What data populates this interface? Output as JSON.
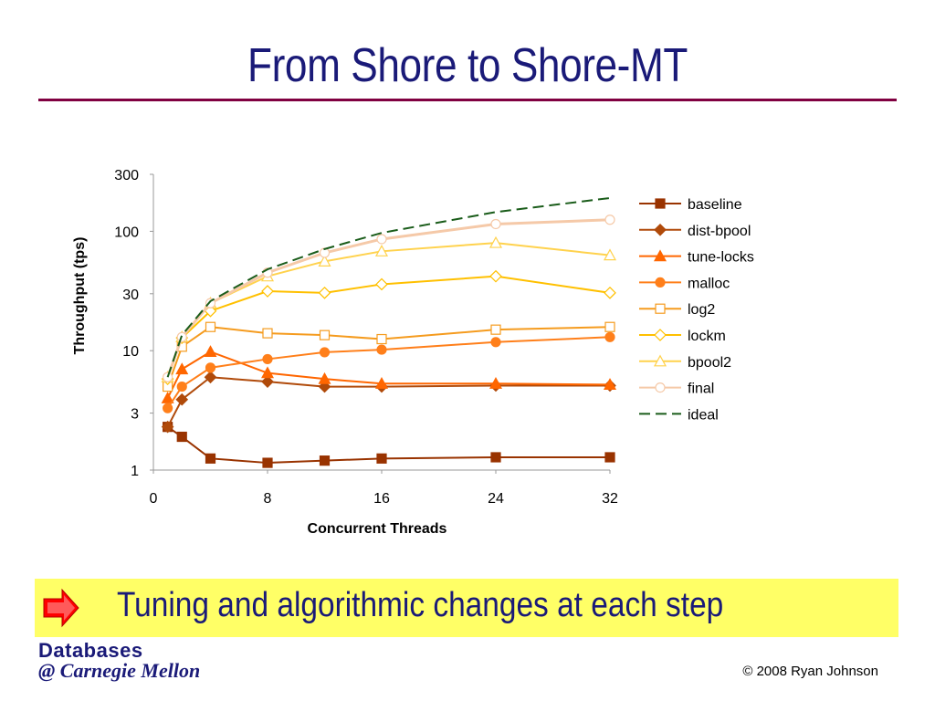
{
  "slide": {
    "title": "From Shore to Shore-MT",
    "callout_text": "Tuning and algorithmic changes at each step",
    "logo_line1": "Databases",
    "logo_line2": "@ Carnegie Mellon",
    "copyright": "© 2008 Ryan Johnson"
  },
  "colors": {
    "title": "#1a1a78",
    "rule": "#800040",
    "callout_bg": "#ffff66",
    "arrow": "#ff0000"
  },
  "chart_data": {
    "type": "line",
    "xlabel": "Concurrent Threads",
    "ylabel": "Throughput (tps)",
    "xlim": [
      0,
      32
    ],
    "ylim": [
      1,
      300
    ],
    "yscale": "log",
    "xticks": [
      0,
      8,
      16,
      24,
      32
    ],
    "yticks": [
      1,
      3,
      10,
      30,
      100,
      300
    ],
    "legend_position": "right",
    "grid": false,
    "series": [
      {
        "name": "baseline",
        "color": "#993300",
        "marker": "square",
        "dash": false,
        "x": [
          1,
          2,
          4,
          8,
          12,
          16,
          24,
          32
        ],
        "y": [
          2.3,
          1.9,
          1.25,
          1.15,
          1.2,
          1.25,
          1.28,
          1.28
        ]
      },
      {
        "name": "dist-bpool",
        "color": "#b04a0a",
        "marker": "diamond",
        "dash": false,
        "x": [
          1,
          2,
          4,
          8,
          12,
          16,
          24,
          32
        ],
        "y": [
          2.3,
          3.9,
          6.0,
          5.5,
          5.0,
          5.0,
          5.1,
          5.1
        ]
      },
      {
        "name": "tune-locks",
        "color": "#ff6600",
        "marker": "triangle",
        "dash": false,
        "x": [
          1,
          2,
          4,
          8,
          12,
          16,
          24,
          32
        ],
        "y": [
          4.0,
          7.0,
          9.8,
          6.5,
          5.8,
          5.3,
          5.3,
          5.2
        ]
      },
      {
        "name": "malloc",
        "color": "#ff7f1a",
        "marker": "circle",
        "dash": false,
        "x": [
          1,
          2,
          4,
          8,
          12,
          16,
          24,
          32
        ],
        "y": [
          3.3,
          5.0,
          7.2,
          8.5,
          9.7,
          10.2,
          11.8,
          13.0
        ]
      },
      {
        "name": "log2",
        "color": "#f59b1e",
        "marker": "square-open",
        "dash": false,
        "x": [
          1,
          2,
          4,
          8,
          12,
          16,
          24,
          32
        ],
        "y": [
          5.0,
          10.8,
          15.8,
          14.0,
          13.5,
          12.5,
          15.0,
          15.8
        ]
      },
      {
        "name": "lockm",
        "color": "#ffc000",
        "marker": "diamond-open",
        "dash": false,
        "x": [
          1,
          2,
          4,
          8,
          12,
          16,
          24,
          32
        ],
        "y": [
          5.8,
          12.8,
          21.5,
          31.5,
          30.5,
          36,
          42,
          30.5
        ]
      },
      {
        "name": "bpool2",
        "color": "#ffd24d",
        "marker": "triangle-open",
        "dash": false,
        "x": [
          1,
          2,
          4,
          8,
          12,
          16,
          24,
          32
        ],
        "y": [
          6.0,
          13.0,
          25,
          42,
          56,
          68,
          80,
          63
        ]
      },
      {
        "name": "final",
        "color": "#f5c9a8",
        "marker": "circle-open",
        "dash": false,
        "x": [
          1,
          2,
          4,
          8,
          12,
          16,
          24,
          32
        ],
        "y": [
          6.0,
          13.0,
          25,
          45,
          66,
          86,
          115,
          125
        ]
      },
      {
        "name": "ideal",
        "color": "#1a5c1a",
        "marker": "none",
        "dash": true,
        "x": [
          1,
          2,
          4,
          8,
          12,
          16,
          24,
          32
        ],
        "y": [
          6.0,
          13.5,
          26,
          48,
          71,
          97,
          145,
          190
        ]
      }
    ]
  }
}
